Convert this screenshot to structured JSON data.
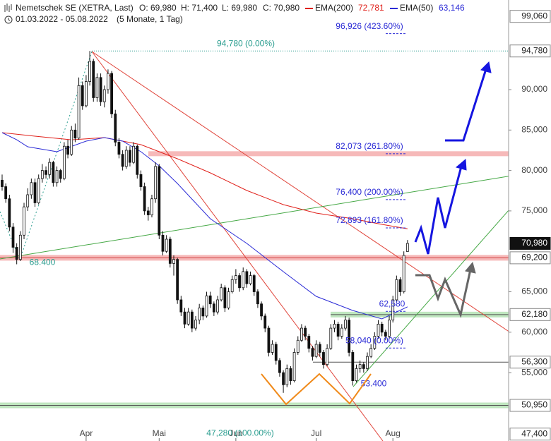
{
  "chart_data": {
    "type": "candlestick",
    "title": "Nemetschek SE (XETRA, Last)",
    "ohlc_labels": [
      "O: 69,980",
      "H: 71,400",
      "L: 69,980",
      "C: 70,980"
    ],
    "subtitle": "01.03.2022 - 05.08.2022",
    "period": "(5 Monate, 1 Tag)",
    "ylim": [
      46545,
      101082
    ],
    "yticks": [
      {
        "value": 90000,
        "label": "90,000"
      },
      {
        "value": 85000,
        "label": "85,000"
      },
      {
        "value": 80000,
        "label": "80,000"
      },
      {
        "value": 75000,
        "label": "75,000"
      },
      {
        "value": 65000,
        "label": "65,000"
      },
      {
        "value": 60000,
        "label": "60,000"
      },
      {
        "value": 55000,
        "label": "55,000"
      }
    ],
    "xticks": [
      {
        "value": 23,
        "label": "Apr"
      },
      {
        "value": 43,
        "label": "Mai"
      },
      {
        "value": 64,
        "label": "Jun"
      },
      {
        "value": 86,
        "label": "Jul"
      },
      {
        "value": 107,
        "label": "Aug"
      }
    ],
    "ohlc": [
      [
        78800,
        79500,
        77500,
        78000
      ],
      [
        78000,
        78400,
        76000,
        76500
      ],
      [
        76500,
        77000,
        72500,
        73000
      ],
      [
        73000,
        73500,
        69800,
        70500
      ],
      [
        70500,
        71000,
        68400,
        69000
      ],
      [
        69000,
        72500,
        68800,
        72000
      ],
      [
        72000,
        76000,
        71500,
        75500
      ],
      [
        75500,
        77800,
        75000,
        77000
      ],
      [
        77000,
        79000,
        76500,
        78500
      ],
      [
        78500,
        79000,
        75500,
        76000
      ],
      [
        76000,
        79500,
        75800,
        79000
      ],
      [
        79000,
        80800,
        78500,
        80000
      ],
      [
        80000,
        80500,
        79000,
        79500
      ],
      [
        79500,
        81500,
        79000,
        81000
      ],
      [
        81000,
        81200,
        78000,
        78500
      ],
      [
        78500,
        80500,
        78000,
        80000
      ],
      [
        80000,
        80200,
        78500,
        79000
      ],
      [
        79000,
        83500,
        78800,
        83000
      ],
      [
        83000,
        83800,
        81500,
        82000
      ],
      [
        82000,
        85500,
        81800,
        85000
      ],
      [
        85000,
        85800,
        83500,
        84000
      ],
      [
        84000,
        91500,
        83800,
        90500
      ],
      [
        90500,
        91000,
        87500,
        88000
      ],
      [
        88000,
        91800,
        87800,
        91000
      ],
      [
        91000,
        94780,
        90500,
        93500
      ],
      [
        93500,
        93800,
        88500,
        89000
      ],
      [
        89000,
        92000,
        88500,
        91500
      ],
      [
        91500,
        92000,
        88000,
        88500
      ],
      [
        88500,
        90500,
        87800,
        90000
      ],
      [
        90000,
        92500,
        89500,
        92000
      ],
      [
        92000,
        92300,
        86500,
        87000
      ],
      [
        87000,
        87500,
        83000,
        83500
      ],
      [
        83500,
        84000,
        81500,
        82000
      ],
      [
        82000,
        82500,
        80000,
        80500
      ],
      [
        80500,
        83000,
        80200,
        82500
      ],
      [
        82500,
        83000,
        80500,
        81000
      ],
      [
        81000,
        83500,
        80800,
        83000
      ],
      [
        83000,
        83200,
        79000,
        79500
      ],
      [
        79500,
        80000,
        77500,
        78000
      ],
      [
        78000,
        78500,
        74500,
        75000
      ],
      [
        75000,
        75500,
        73800,
        74500
      ],
      [
        74500,
        77000,
        74200,
        76500
      ],
      [
        76500,
        81000,
        76000,
        80500
      ],
      [
        80500,
        80800,
        71500,
        72000
      ],
      [
        72000,
        72500,
        69500,
        70000
      ],
      [
        70000,
        72000,
        69800,
        71500
      ],
      [
        71500,
        71800,
        68000,
        68500
      ],
      [
        68500,
        69500,
        67000,
        69000
      ],
      [
        69000,
        69200,
        63500,
        64000
      ],
      [
        64000,
        64500,
        62000,
        62500
      ],
      [
        62500,
        63000,
        60500,
        61000
      ],
      [
        61000,
        63000,
        60800,
        62500
      ],
      [
        62500,
        62800,
        60000,
        60500
      ],
      [
        60500,
        62000,
        60200,
        61500
      ],
      [
        61500,
        63500,
        61000,
        63000
      ],
      [
        63000,
        63300,
        61500,
        62000
      ],
      [
        62000,
        65000,
        61800,
        64500
      ],
      [
        64500,
        65000,
        63000,
        63500
      ],
      [
        63500,
        63800,
        62000,
        62500
      ],
      [
        62500,
        64500,
        62200,
        64000
      ],
      [
        64000,
        66000,
        63800,
        65500
      ],
      [
        65500,
        65800,
        62500,
        63000
      ],
      [
        63000,
        65500,
        62800,
        65000
      ],
      [
        65000,
        67000,
        64800,
        66500
      ],
      [
        66500,
        67800,
        66000,
        67000
      ],
      [
        67000,
        67300,
        65000,
        65500
      ],
      [
        65500,
        68000,
        65200,
        67500
      ],
      [
        67500,
        67800,
        65500,
        66000
      ],
      [
        66000,
        67500,
        65800,
        67000
      ],
      [
        67000,
        67200,
        64500,
        65000
      ],
      [
        65000,
        65300,
        63000,
        63500
      ],
      [
        63500,
        63800,
        61500,
        62000
      ],
      [
        62000,
        62300,
        60000,
        60500
      ],
      [
        60500,
        60800,
        57000,
        57500
      ],
      [
        57500,
        59000,
        57200,
        58500
      ],
      [
        58500,
        58800,
        56000,
        56500
      ],
      [
        56500,
        56800,
        54500,
        55000
      ],
      [
        55000,
        55300,
        52500,
        53500
      ],
      [
        53500,
        56000,
        53200,
        55500
      ],
      [
        55500,
        55800,
        53500,
        54000
      ],
      [
        54000,
        58000,
        53800,
        57500
      ],
      [
        57500,
        59500,
        57200,
        59000
      ],
      [
        59000,
        61000,
        58800,
        60500
      ],
      [
        60500,
        60800,
        59000,
        59500
      ],
      [
        59500,
        59800,
        57500,
        58000
      ],
      [
        58000,
        58300,
        56500,
        57000
      ],
      [
        57000,
        59000,
        56800,
        58500
      ],
      [
        58500,
        58800,
        57000,
        57500
      ],
      [
        57500,
        57800,
        55500,
        56000
      ],
      [
        56000,
        58500,
        55800,
        58000
      ],
      [
        58000,
        61000,
        57800,
        60500
      ],
      [
        60500,
        61500,
        60000,
        61000
      ],
      [
        61000,
        61300,
        59000,
        59500
      ],
      [
        59500,
        61000,
        59200,
        60500
      ],
      [
        60500,
        62000,
        60200,
        61500
      ],
      [
        61500,
        61800,
        57000,
        57500
      ],
      [
        57500,
        57800,
        53400,
        54000
      ],
      [
        54000,
        56000,
        53800,
        55500
      ],
      [
        55500,
        56500,
        55000,
        56000
      ],
      [
        56000,
        56300,
        55000,
        55500
      ],
      [
        55500,
        57500,
        55200,
        57000
      ],
      [
        57000,
        58500,
        56800,
        58000
      ],
      [
        58000,
        60000,
        57800,
        59500
      ],
      [
        59500,
        61500,
        59200,
        61000
      ],
      [
        61000,
        61300,
        59500,
        60000
      ],
      [
        60000,
        60300,
        59000,
        59500
      ],
      [
        59500,
        62000,
        59200,
        61500
      ],
      [
        61500,
        64500,
        61200,
        64000
      ],
      [
        64000,
        67000,
        63800,
        66500
      ],
      [
        66500,
        66800,
        64500,
        65000
      ],
      [
        65000,
        70000,
        64800,
        69500
      ],
      [
        69980,
        71400,
        69980,
        70980
      ]
    ],
    "series": [
      {
        "name": "EMA(200)",
        "color": "#e0201a",
        "last_label": "72,781",
        "x": [
          0,
          9,
          19,
          28,
          38,
          48,
          57,
          67,
          77,
          86,
          96,
          104,
          111
        ],
        "values": [
          84680,
          84240,
          83800,
          84070,
          83190,
          81450,
          79700,
          77520,
          75780,
          74730,
          74030,
          73330,
          72781
        ]
      },
      {
        "name": "EMA(50)",
        "color": "#2b2bd6",
        "last_label": "63,146",
        "x": [
          0,
          4,
          7,
          15,
          23,
          28,
          33,
          38,
          43,
          48,
          57,
          67,
          77,
          86,
          96,
          104,
          111
        ],
        "values": [
          84680,
          83800,
          82930,
          82320,
          83630,
          84070,
          83630,
          82320,
          80580,
          78390,
          74030,
          70980,
          67490,
          64430,
          62690,
          61640,
          63146
        ]
      }
    ],
    "levels": [
      {
        "value": 99060,
        "label": "99,060",
        "style": "none"
      },
      {
        "value": 94780,
        "label": "94,780",
        "style": "dotted"
      },
      {
        "value": 70980,
        "label": "70,980",
        "style": "last"
      },
      {
        "value": 69200,
        "label": "69,200",
        "style": "red-band"
      },
      {
        "value": 62180,
        "label": "62,180",
        "style": "green-band"
      },
      {
        "value": 56300,
        "label": "56,300",
        "style": "line"
      },
      {
        "value": 50950,
        "label": "50,950",
        "style": "green-band"
      },
      {
        "value": 47400,
        "label": "47,400",
        "style": "none"
      }
    ],
    "annotations": [
      {
        "value": 96926,
        "label": "96,926 (423.60%)",
        "color": "#2b2bd6"
      },
      {
        "value": 94780,
        "label": "94,780 (0.00%)",
        "color": "#2a9d8f"
      },
      {
        "value": 82073,
        "label": "82,073 (261.80%)",
        "color": "#2b2bd6"
      },
      {
        "value": 76400,
        "label": "76,400 (200.00%)",
        "color": "#2b2bd6"
      },
      {
        "value": 72893,
        "label": "72,893 (161.80%)",
        "color": "#2b2bd6"
      },
      {
        "value": 68400,
        "label": "68.400",
        "color": "#2a9d8f"
      },
      {
        "value": 62580,
        "label": "62,580",
        "color": "#2b2bd6"
      },
      {
        "value": 58040,
        "label": "58,040 (0.00%)",
        "color": "#2b2bd6"
      },
      {
        "value": 53400,
        "label": "53.400",
        "color": "#2b2bd6"
      },
      {
        "value": 47280,
        "label": "47,280 (100.00%)",
        "color": "#2a9d8f"
      }
    ]
  }
}
